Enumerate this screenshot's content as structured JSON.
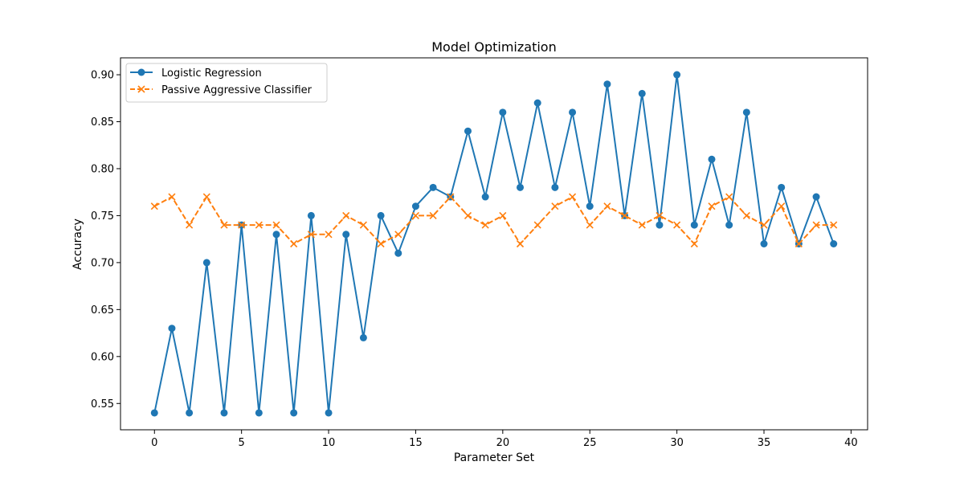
{
  "chart_data": {
    "type": "line",
    "title": "Model Optimization",
    "xlabel": "Parameter Set",
    "ylabel": "Accuracy",
    "xlim": [
      -1.95,
      40.95
    ],
    "ylim": [
      0.522,
      0.918
    ],
    "x_ticks": [
      0,
      5,
      10,
      15,
      20,
      25,
      30,
      35,
      40
    ],
    "y_ticks": [
      0.55,
      0.6,
      0.65,
      0.7,
      0.75,
      0.8,
      0.85,
      0.9
    ],
    "x_tick_labels": [
      "0",
      "5",
      "10",
      "15",
      "20",
      "25",
      "30",
      "35",
      "40"
    ],
    "y_tick_labels": [
      "0.55",
      "0.60",
      "0.65",
      "0.70",
      "0.75",
      "0.80",
      "0.85",
      "0.90"
    ],
    "grid": false,
    "legend_position": "top-left",
    "x": [
      0,
      1,
      2,
      3,
      4,
      5,
      6,
      7,
      8,
      9,
      10,
      11,
      12,
      13,
      14,
      15,
      16,
      17,
      18,
      19,
      20,
      21,
      22,
      23,
      24,
      25,
      26,
      27,
      28,
      29,
      30,
      31,
      32,
      33,
      34,
      35,
      36,
      37,
      38,
      39
    ],
    "series": [
      {
        "name": "Logistic Regression",
        "color": "#1f77b4",
        "line_style": "solid",
        "marker": "circle",
        "values": [
          0.54,
          0.63,
          0.54,
          0.7,
          0.54,
          0.74,
          0.54,
          0.73,
          0.54,
          0.75,
          0.54,
          0.73,
          0.62,
          0.75,
          0.71,
          0.76,
          0.78,
          0.77,
          0.84,
          0.77,
          0.86,
          0.78,
          0.87,
          0.78,
          0.86,
          0.76,
          0.89,
          0.75,
          0.88,
          0.74,
          0.9,
          0.74,
          0.81,
          0.74,
          0.86,
          0.72,
          0.78,
          0.72,
          0.77,
          0.72
        ]
      },
      {
        "name": "Passive Aggressive Classifier",
        "color": "#ff7f0e",
        "line_style": "dashed",
        "marker": "x",
        "values": [
          0.76,
          0.77,
          0.74,
          0.77,
          0.74,
          0.74,
          0.74,
          0.74,
          0.72,
          0.73,
          0.73,
          0.75,
          0.74,
          0.72,
          0.73,
          0.75,
          0.75,
          0.77,
          0.75,
          0.74,
          0.75,
          0.72,
          0.74,
          0.76,
          0.77,
          0.74,
          0.76,
          0.75,
          0.74,
          0.75,
          0.74,
          0.72,
          0.76,
          0.77,
          0.75,
          0.74,
          0.76,
          0.72,
          0.74,
          0.74
        ]
      }
    ]
  }
}
